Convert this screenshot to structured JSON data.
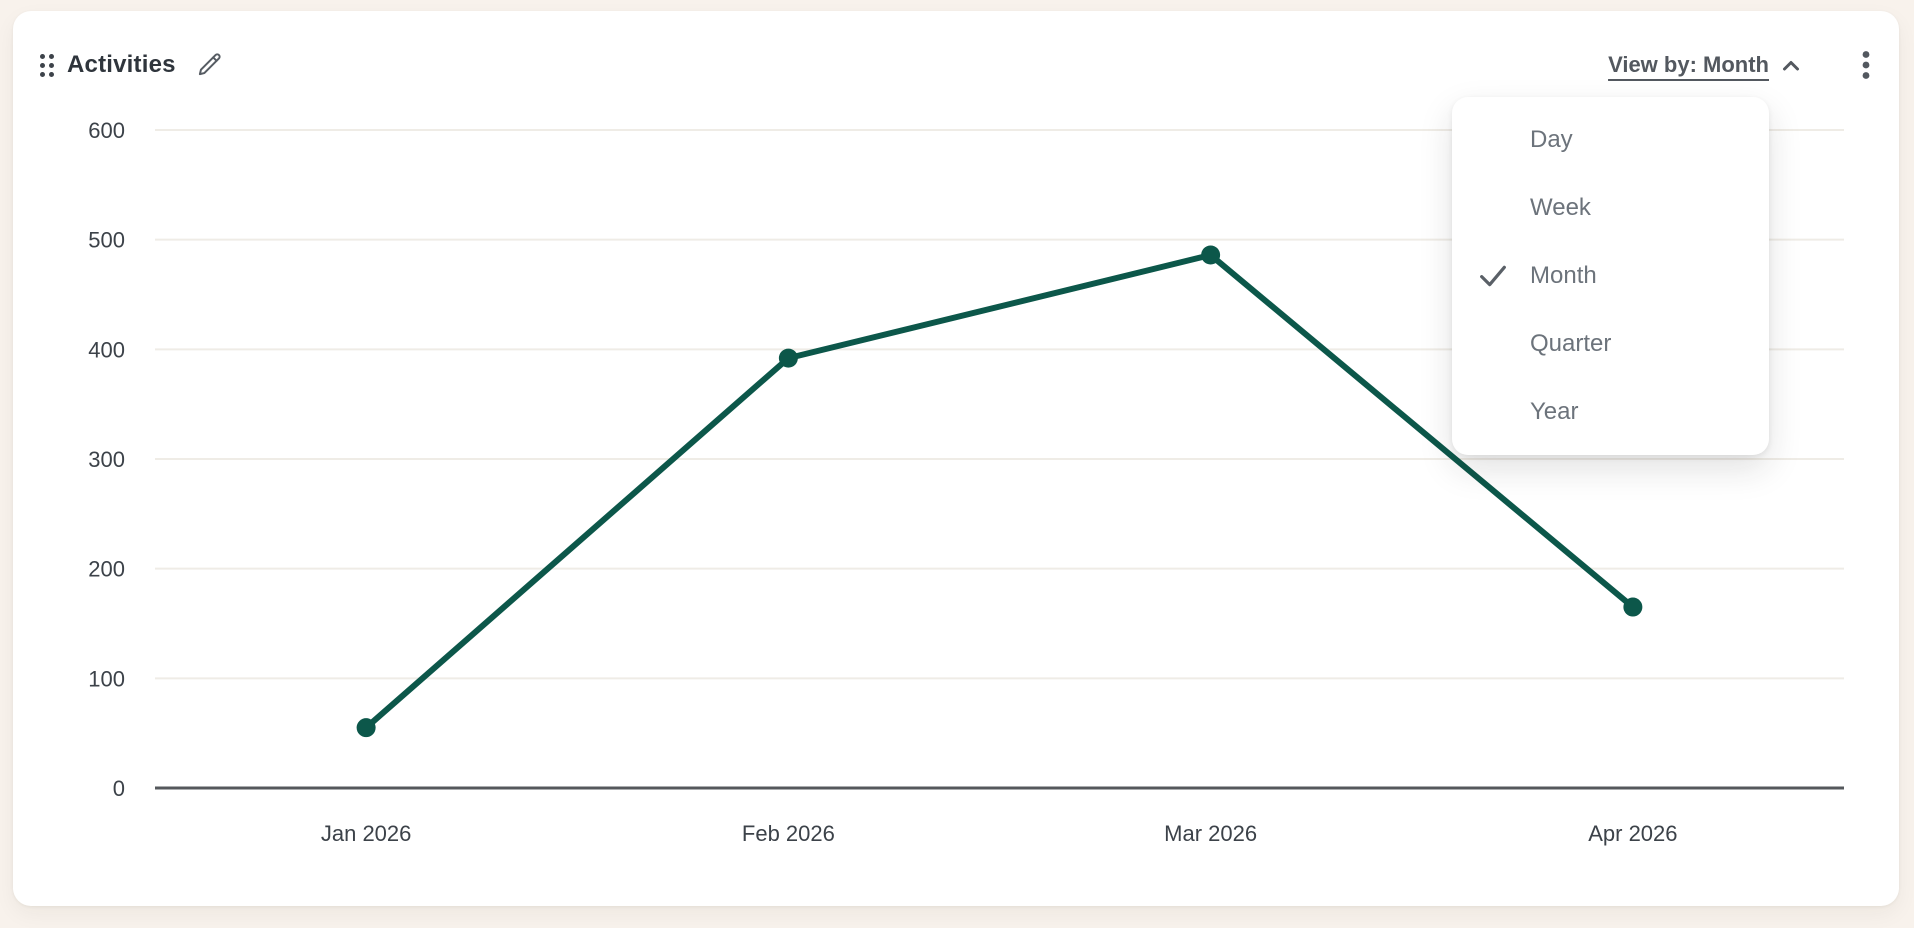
{
  "widget": {
    "title": "Activities",
    "view_by_label": "View by: Month"
  },
  "icons": {
    "drag_handle": "six-dot-drag-handle-icon",
    "edit": "pencil-icon",
    "view_by_chevron": "chevron-up-icon",
    "options": "kebab-menu-icon",
    "selected": "check-icon"
  },
  "dropdown": {
    "items": [
      {
        "label": "Day",
        "selected": false
      },
      {
        "label": "Week",
        "selected": false
      },
      {
        "label": "Month",
        "selected": true
      },
      {
        "label": "Quarter",
        "selected": false
      },
      {
        "label": "Year",
        "selected": false
      }
    ]
  },
  "chart_data": {
    "type": "line",
    "title": "Activities",
    "categories": [
      "Jan 2026",
      "Feb 2026",
      "Mar 2026",
      "Apr 2026"
    ],
    "values": [
      55,
      392,
      486,
      165
    ],
    "xlabel": "",
    "ylabel": "",
    "ylim": [
      0,
      600
    ],
    "yticks": [
      0,
      100,
      200,
      300,
      400,
      500,
      600
    ],
    "grid": true,
    "legend": false,
    "line_color": "#0c574a",
    "point_color": "#0c574a",
    "grid_color": "#efece6",
    "axis_color": "#55585c"
  },
  "colors": {
    "page_background": "#f8f2ec",
    "card_background": "#ffffff",
    "title_text": "#2f353c",
    "muted_text": "#6c737b",
    "accent": "#0c574a"
  }
}
